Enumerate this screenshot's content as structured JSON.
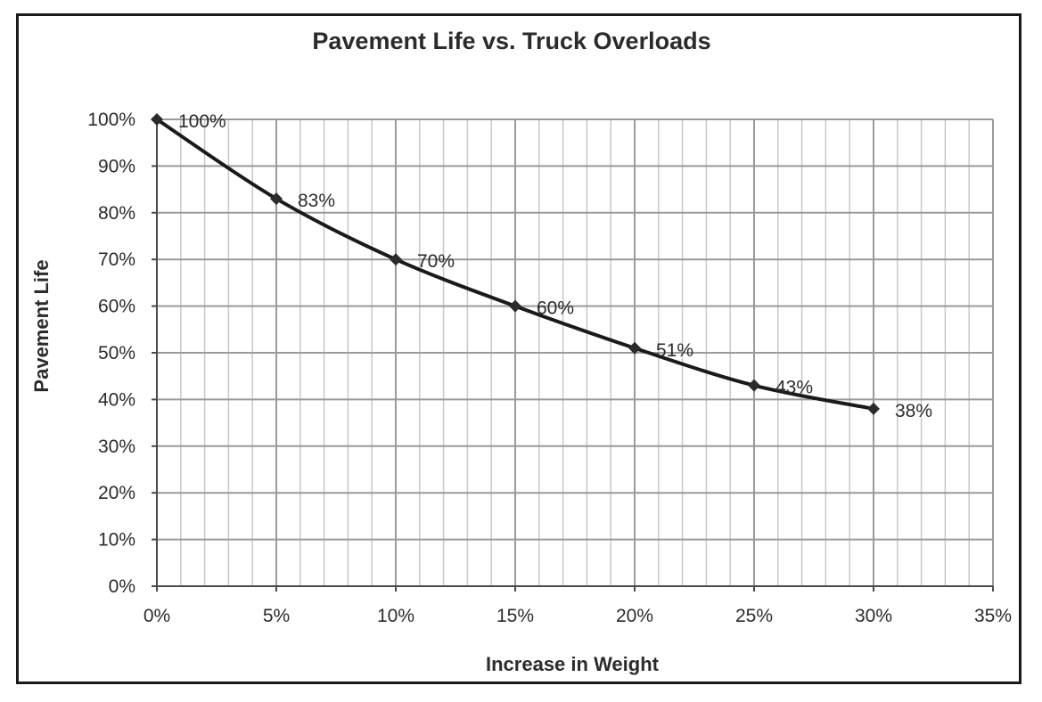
{
  "chart_data": {
    "type": "scatter",
    "title": "Pavement Life vs. Truck Overloads",
    "xlabel": "Increase in Weight",
    "ylabel": "Pavement Life",
    "xlim": [
      0,
      35
    ],
    "ylim": [
      0,
      100
    ],
    "x_ticks": [
      0,
      5,
      10,
      15,
      20,
      25,
      30,
      35
    ],
    "x_tick_labels": [
      "0%",
      "5%",
      "10%",
      "15%",
      "20%",
      "25%",
      "30%",
      "35%"
    ],
    "y_ticks": [
      0,
      10,
      20,
      30,
      40,
      50,
      60,
      70,
      80,
      90,
      100
    ],
    "y_tick_labels": [
      "0%",
      "10%",
      "20%",
      "30%",
      "40%",
      "50%",
      "60%",
      "70%",
      "80%",
      "90%",
      "100%"
    ],
    "x_minor_step": 1,
    "grid": true,
    "smooth_line": true,
    "legend": "none",
    "colors": {
      "line": "#1a1a1a",
      "marker": "#2b2b2b",
      "major_grid": "#9a9a9a",
      "minor_grid": "#c8c8c8",
      "text": "#2b2b2b"
    },
    "series": [
      {
        "marker": "diamond",
        "x": [
          0,
          5,
          10,
          15,
          20,
          25,
          30
        ],
        "y": [
          100,
          83,
          70,
          60,
          51,
          43,
          38
        ],
        "labels": [
          "100%",
          "83%",
          "70%",
          "60%",
          "51%",
          "43%",
          "38%"
        ]
      }
    ]
  }
}
